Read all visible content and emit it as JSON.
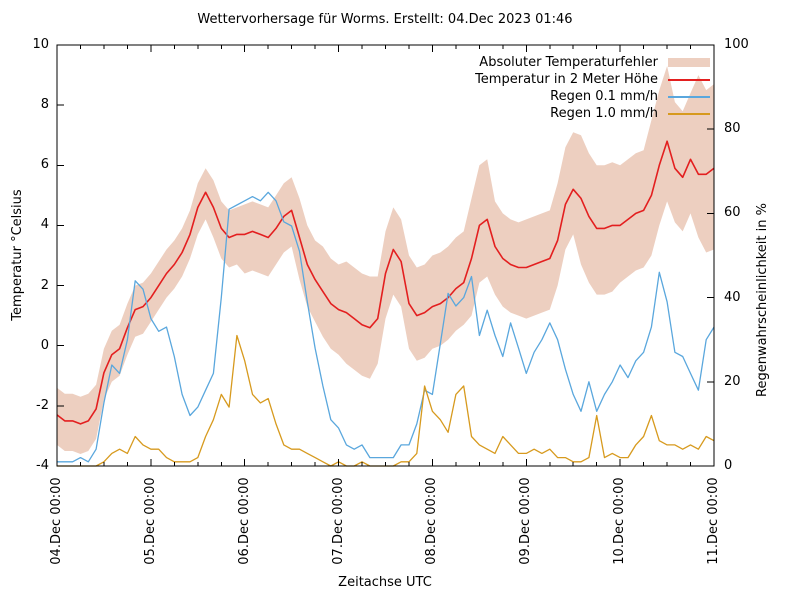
{
  "title": "Wettervorhersage für Worms. Erstellt: 04.Dec 2023 01:46",
  "axes": {
    "x_label": "Zeitachse UTC",
    "y_left_label": "Temperatur °Celsius",
    "y_right_label": "Regenwahrscheinlichkeit in %",
    "y_left_ticks": [
      "-4",
      "-2",
      "0",
      "2",
      "4",
      "6",
      "8",
      "10"
    ],
    "y_right_ticks": [
      "0",
      "20",
      "40",
      "60",
      "80",
      "100"
    ],
    "x_ticks": [
      "04.Dec 00:00",
      "05.Dec 00:00",
      "06.Dec 00:00",
      "07.Dec 00:00",
      "08.Dec 00:00",
      "09.Dec 00:00",
      "10.Dec 00:00",
      "11.Dec 00:00"
    ]
  },
  "legend": [
    {
      "label": "Absoluter Temperaturfehler",
      "type": "band",
      "color": "#edcfc0"
    },
    {
      "label": "Temperatur in 2 Meter Höhe",
      "type": "line",
      "color": "#e31f1f"
    },
    {
      "label": "Regen 0.1 mm/h",
      "type": "line",
      "color": "#5aa7dd"
    },
    {
      "label": "Regen 1.0 mm/h",
      "type": "line",
      "color": "#d79a1e"
    }
  ],
  "chart_data": {
    "type": "line",
    "title": "Wettervorhersage für Worms. Erstellt: 04.Dec 2023 01:46",
    "xlabel": "Zeitachse UTC",
    "x_unit": "hours since 04.Dec 2023 00:00 UTC",
    "x_step_hours": 2,
    "x_range_hours": [
      0,
      168
    ],
    "x_day_labels": [
      "04.Dec 00:00",
      "05.Dec 00:00",
      "06.Dec 00:00",
      "07.Dec 00:00",
      "08.Dec 00:00",
      "09.Dec 00:00",
      "10.Dec 00:00",
      "11.Dec 00:00"
    ],
    "y_left": {
      "label": "Temperatur °Celsius",
      "range": [
        -4,
        10
      ],
      "tick_step": 2
    },
    "y_right": {
      "label": "Regenwahrscheinlichkeit in %",
      "range": [
        0,
        100
      ],
      "tick_step": 20
    },
    "grid": false,
    "legend_position": "top-right-inside",
    "series": [
      {
        "name": "Absoluter Temperaturfehler",
        "axis": "left",
        "style": "band",
        "color": "#edcfc0",
        "upper": [
          -1.4,
          -1.6,
          -1.6,
          -1.7,
          -1.6,
          -1.3,
          -0.1,
          0.5,
          0.7,
          1.4,
          2.0,
          2.1,
          2.4,
          2.8,
          3.2,
          3.5,
          3.9,
          4.5,
          5.4,
          5.9,
          5.5,
          4.8,
          4.5,
          4.6,
          4.7,
          4.8,
          4.7,
          4.6,
          5.0,
          5.4,
          5.6,
          4.9,
          4.0,
          3.5,
          3.3,
          2.9,
          2.7,
          2.8,
          2.6,
          2.4,
          2.3,
          2.3,
          3.8,
          4.6,
          4.2,
          3.0,
          2.6,
          2.7,
          3.0,
          3.1,
          3.3,
          3.6,
          3.8,
          4.9,
          6.0,
          6.2,
          4.8,
          4.4,
          4.2,
          4.1,
          4.2,
          4.3,
          4.4,
          4.5,
          5.4,
          6.6,
          7.1,
          7.0,
          6.4,
          6.0,
          6.0,
          6.1,
          6.0,
          6.2,
          6.4,
          6.5,
          7.5,
          8.5,
          9.3,
          8.1,
          7.8,
          8.4,
          9.0,
          8.5,
          8.7
        ],
        "lower": [
          -3.3,
          -3.5,
          -3.5,
          -3.6,
          -3.5,
          -3.1,
          -1.8,
          -1.2,
          -1.0,
          -0.3,
          0.3,
          0.4,
          0.8,
          1.2,
          1.6,
          1.9,
          2.3,
          2.9,
          3.7,
          4.2,
          3.6,
          2.9,
          2.6,
          2.7,
          2.4,
          2.5,
          2.4,
          2.3,
          2.7,
          3.1,
          3.3,
          2.2,
          1.3,
          0.8,
          0.3,
          -0.1,
          -0.3,
          -0.6,
          -0.8,
          -1.0,
          -1.1,
          -0.6,
          0.9,
          1.7,
          1.3,
          -0.1,
          -0.5,
          -0.4,
          -0.1,
          0.0,
          0.2,
          0.5,
          0.7,
          1.0,
          2.1,
          2.3,
          1.7,
          1.3,
          1.1,
          1.0,
          0.9,
          1.0,
          1.1,
          1.2,
          2.0,
          3.2,
          3.7,
          2.7,
          2.1,
          1.7,
          1.7,
          1.8,
          2.1,
          2.3,
          2.5,
          2.6,
          3.0,
          4.0,
          4.8,
          4.1,
          3.8,
          4.4,
          3.6,
          3.1,
          3.2
        ]
      },
      {
        "name": "Temperatur in 2 Meter Höhe",
        "axis": "left",
        "style": "line",
        "color": "#e31f1f",
        "values": [
          -2.3,
          -2.5,
          -2.5,
          -2.6,
          -2.5,
          -2.1,
          -0.9,
          -0.3,
          -0.1,
          0.6,
          1.2,
          1.3,
          1.6,
          2.0,
          2.4,
          2.7,
          3.1,
          3.7,
          4.6,
          5.1,
          4.6,
          3.9,
          3.6,
          3.7,
          3.7,
          3.8,
          3.7,
          3.6,
          3.9,
          4.3,
          4.5,
          3.6,
          2.7,
          2.2,
          1.8,
          1.4,
          1.2,
          1.1,
          0.9,
          0.7,
          0.6,
          0.9,
          2.4,
          3.2,
          2.8,
          1.4,
          1.0,
          1.1,
          1.3,
          1.4,
          1.6,
          1.9,
          2.1,
          2.9,
          4.0,
          4.2,
          3.3,
          2.9,
          2.7,
          2.6,
          2.6,
          2.7,
          2.8,
          2.9,
          3.5,
          4.7,
          5.2,
          4.9,
          4.3,
          3.9,
          3.9,
          4.0,
          4.0,
          4.2,
          4.4,
          4.5,
          5.0,
          6.0,
          6.8,
          5.9,
          5.6,
          6.2,
          5.7,
          5.7,
          5.9
        ]
      },
      {
        "name": "Regen 0.1 mm/h",
        "axis": "right",
        "style": "line",
        "color": "#5aa7dd",
        "values": [
          1,
          1,
          1,
          2,
          1,
          4,
          15,
          24,
          22,
          30,
          44,
          42,
          35,
          32,
          33,
          26,
          17,
          12,
          14,
          18,
          22,
          40,
          61,
          62,
          63,
          64,
          63,
          65,
          63,
          58,
          57,
          51,
          39,
          28,
          19,
          11,
          9,
          5,
          4,
          5,
          2,
          2,
          2,
          2,
          5,
          5,
          10,
          18,
          17,
          29,
          41,
          38,
          40,
          45,
          31,
          37,
          31,
          26,
          34,
          28,
          22,
          27,
          30,
          34,
          30,
          23,
          17,
          13,
          20,
          13,
          17,
          20,
          24,
          21,
          25,
          27,
          33,
          46,
          39,
          27,
          26,
          22,
          18,
          30,
          33
        ]
      },
      {
        "name": "Regen 1.0 mm/h",
        "axis": "right",
        "style": "line",
        "color": "#d79a1e",
        "values": [
          0,
          0,
          0,
          0,
          0,
          0,
          1,
          3,
          4,
          3,
          7,
          5,
          4,
          4,
          2,
          1,
          1,
          1,
          2,
          7,
          11,
          17,
          14,
          31,
          25,
          17,
          15,
          16,
          10,
          5,
          4,
          4,
          3,
          2,
          1,
          0,
          1,
          0,
          0,
          1,
          0,
          0,
          0,
          0,
          1,
          1,
          3,
          19,
          13,
          11,
          8,
          17,
          19,
          7,
          5,
          4,
          3,
          7,
          5,
          3,
          3,
          4,
          3,
          4,
          2,
          2,
          1,
          1,
          2,
          12,
          2,
          3,
          2,
          2,
          5,
          7,
          12,
          6,
          5,
          5,
          4,
          5,
          4,
          7,
          6
        ]
      }
    ]
  }
}
